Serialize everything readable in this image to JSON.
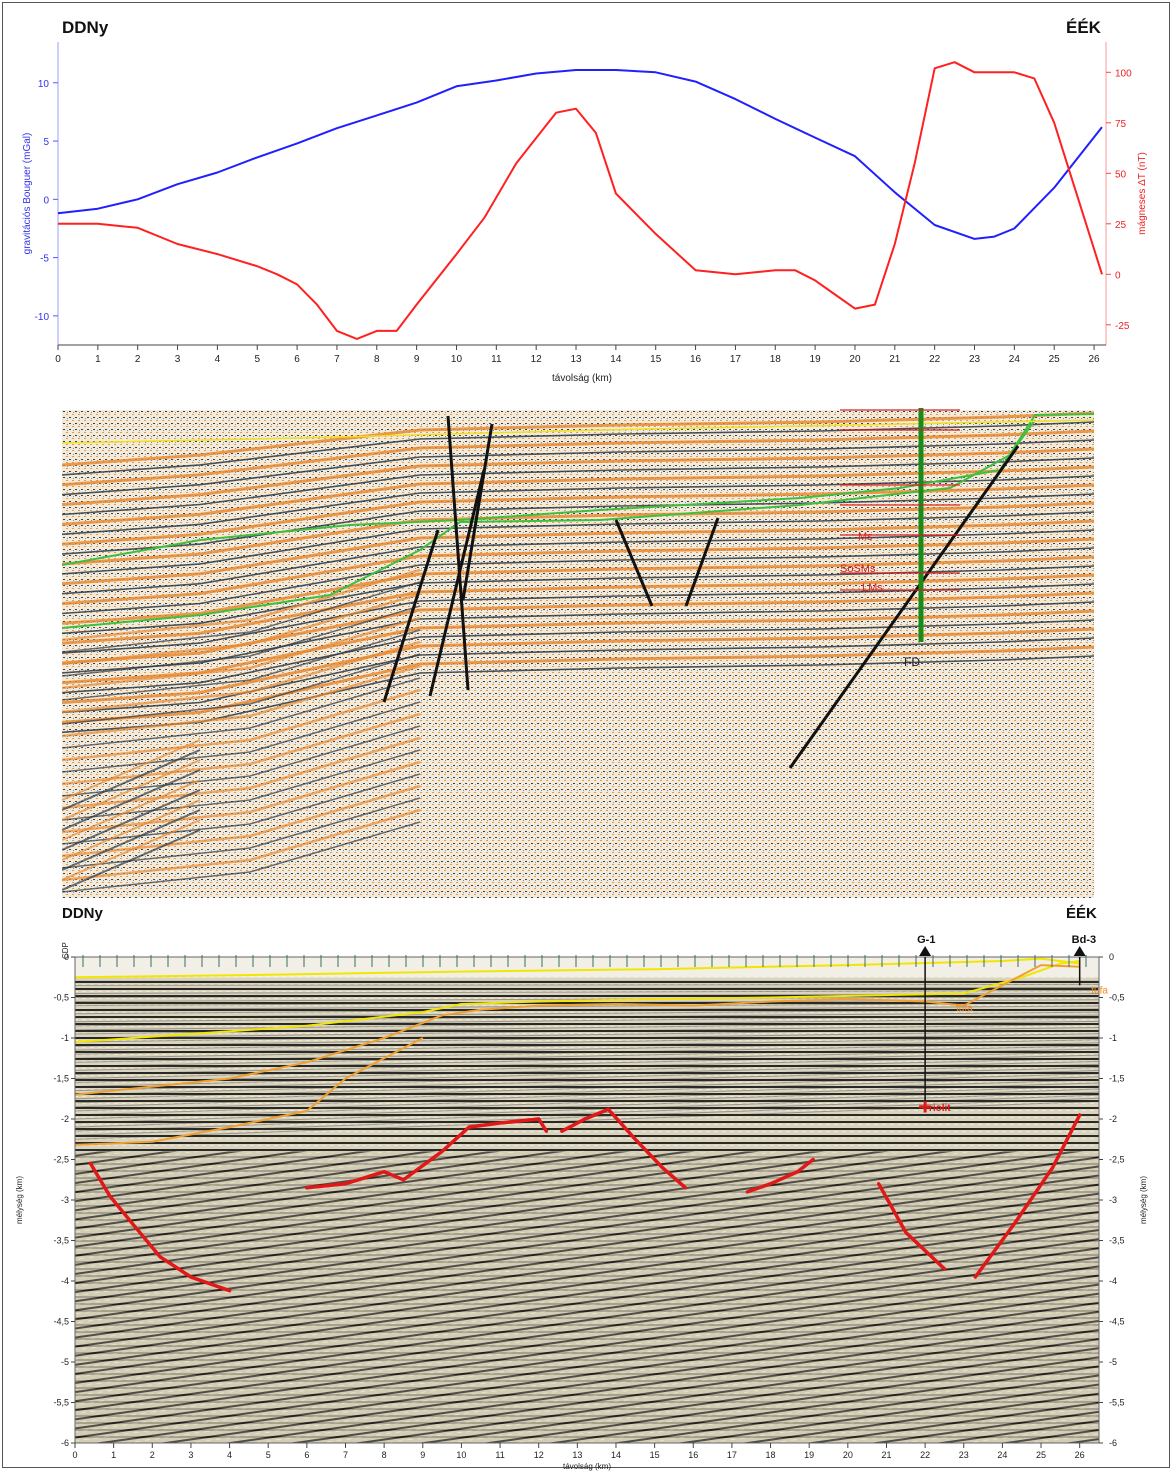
{
  "labels": {
    "left_dir": "DDNy",
    "right_dir": "ÉÉK",
    "left_dir_bottom": "DDNy",
    "right_dir_bottom": "ÉÉK"
  },
  "colors": {
    "gravity": "#2020ff",
    "magnetic": "#ff2020",
    "fault": "#111111",
    "horizon_green": "#3fbf3f",
    "horizon_yellow": "#f2e600",
    "horizon_orange": "#f0a030",
    "basement_red": "#e01818",
    "well_green": "#1a8a1a"
  },
  "chart_data": [
    {
      "type": "line",
      "xlabel": "távolság (km)",
      "ylabel": "gravitációs Bouguer (mGal)",
      "y2label": "mágneses ΔT (nT)",
      "xlim": [
        0,
        26.3
      ],
      "ylim": [
        -12.5,
        13.5
      ],
      "y2lim": [
        -35,
        115
      ],
      "xticks": [
        "0",
        "1",
        "2",
        "3",
        "4",
        "5",
        "6",
        "7",
        "8",
        "9",
        "10",
        "11",
        "12",
        "13",
        "14",
        "15",
        "16",
        "17",
        "18",
        "19",
        "20",
        "21",
        "22",
        "23",
        "24",
        "25",
        "26"
      ],
      "yticks": [
        "-10",
        "-5",
        "0",
        "5",
        "10"
      ],
      "y2ticks": [
        "-25",
        "0",
        "25",
        "50",
        "75",
        "100"
      ],
      "series": [
        {
          "axis": "left",
          "color": "#2020ff",
          "x": [
            0,
            1,
            2,
            3,
            4,
            5,
            6,
            7,
            8,
            9,
            10,
            11,
            12,
            13,
            14,
            15,
            16,
            17,
            18,
            19,
            20,
            21,
            22,
            23,
            23.5,
            24,
            25,
            26.2
          ],
          "y": [
            -1.2,
            -0.8,
            0,
            1.3,
            2.3,
            3.6,
            4.8,
            6.1,
            7.2,
            8.3,
            9.7,
            10.2,
            10.8,
            11.1,
            11.1,
            10.9,
            10.1,
            8.6,
            6.9,
            5.3,
            3.7,
            0.6,
            -2.2,
            -3.4,
            -3.2,
            -2.5,
            1.0,
            6.2
          ]
        },
        {
          "axis": "right",
          "color": "#ff2020",
          "x": [
            0,
            1,
            2,
            3,
            4,
            5,
            5.5,
            6,
            6.5,
            7,
            7.5,
            8,
            8.5,
            9,
            10,
            10.7,
            11.5,
            12.5,
            13,
            13.5,
            14,
            15,
            16,
            17,
            18,
            18.5,
            19,
            19.5,
            20,
            20.5,
            21,
            21.5,
            22,
            22.5,
            23,
            24,
            24.5,
            25,
            26.2
          ],
          "y": [
            25,
            25,
            23,
            15,
            10,
            4,
            0,
            -5,
            -15,
            -28,
            -32,
            -28,
            -28,
            -15,
            10,
            28,
            55,
            80,
            82,
            70,
            40,
            20,
            2,
            0,
            2,
            2,
            -3,
            -10,
            -17,
            -15,
            15,
            55,
            102,
            105,
            100,
            100,
            97,
            75,
            0
          ]
        }
      ]
    },
    {
      "type": "heatmap",
      "annotations": [
        "Ms",
        "SoSMs",
        "LMs",
        "FD"
      ],
      "fault_lines_km": [
        [
          10.5,
          0.01,
          10.9,
          0.56
        ],
        [
          11.0,
          0.01,
          10.5,
          0.54
        ],
        [
          9.5,
          0.25,
          8.0,
          0.59
        ],
        [
          10.8,
          0.22,
          9.2,
          0.57
        ],
        [
          14.0,
          0.22,
          14.8,
          0.39
        ],
        [
          16.2,
          0.22,
          15.8,
          0.39
        ],
        [
          24.6,
          0.07,
          18.2,
          0.74
        ]
      ]
    },
    {
      "type": "heatmap",
      "xlabel": "távolság (km)",
      "ylabel": "mélység (km)",
      "xlim": [
        0,
        26.5
      ],
      "ylim": [
        -6,
        0
      ],
      "xticks": [
        "0",
        "1",
        "2",
        "3",
        "4",
        "5",
        "6",
        "7",
        "8",
        "9",
        "10",
        "11",
        "12",
        "13",
        "14",
        "15",
        "16",
        "17",
        "18",
        "19",
        "20",
        "21",
        "22",
        "23",
        "24",
        "25",
        "26"
      ],
      "yticks": [
        "0",
        "-0,5",
        "-1",
        "-1,5",
        "-2",
        "-2,5",
        "-3",
        "-3,5",
        "-4",
        "-4,5",
        "-5",
        "-5,5",
        "-6"
      ],
      "cdp_label": "CDP",
      "wells": [
        {
          "name": "G-1",
          "km": 22.0
        },
        {
          "name": "Bd-3",
          "km": 26.0
        }
      ],
      "annotations": [
        {
          "text": "tufa",
          "km": 22.8,
          "depth": -0.62
        },
        {
          "text": "tufa",
          "km": 26.3,
          "depth": -0.4
        },
        {
          "text": "riolit",
          "km": 22.1,
          "depth": -1.85
        }
      ],
      "horizons": [
        {
          "color": "#f2e600",
          "x": [
            0,
            5,
            10,
            15,
            20,
            24,
            25,
            26
          ],
          "y": [
            -0.25,
            -0.22,
            -0.18,
            -0.15,
            -0.1,
            -0.05,
            -0.02,
            -0.08
          ]
        },
        {
          "color": "#f2e600",
          "x": [
            0,
            3,
            6,
            9,
            10,
            12,
            15,
            18,
            21,
            23,
            24.5,
            25.5,
            26
          ],
          "y": [
            -1.05,
            -0.95,
            -0.85,
            -0.68,
            -0.58,
            -0.55,
            -0.52,
            -0.5,
            -0.47,
            -0.45,
            -0.25,
            -0.08,
            -0.05
          ]
        },
        {
          "color": "#f0a030",
          "x": [
            0,
            2,
            4,
            6,
            8,
            9.5,
            10.5,
            12,
            14,
            16,
            18,
            20,
            22,
            23,
            24,
            25,
            26
          ],
          "y": [
            -1.7,
            -1.6,
            -1.5,
            -1.3,
            -1.0,
            -0.72,
            -0.65,
            -0.6,
            -0.58,
            -0.6,
            -0.55,
            -0.52,
            -0.55,
            -0.6,
            -0.35,
            -0.1,
            -0.12
          ]
        },
        {
          "color": "#f0a030",
          "x": [
            0,
            2,
            4,
            5,
            6,
            7,
            8,
            9
          ],
          "y": [
            -2.32,
            -2.28,
            -2.1,
            -2.0,
            -1.9,
            -1.5,
            -1.25,
            -1.0
          ]
        }
      ],
      "basement": [
        [
          [
            0.4,
            0.9,
            1.5,
            2.2,
            3.0,
            4.0
          ],
          [
            -2.55,
            -2.95,
            -3.3,
            -3.7,
            -3.95,
            -4.12
          ]
        ],
        [
          [
            6.0,
            7.0,
            8.0,
            8.5,
            9.5,
            10.2,
            11.0,
            12.0,
            12.2
          ],
          [
            -2.85,
            -2.8,
            -2.65,
            -2.75,
            -2.4,
            -2.1,
            -2.05,
            -2.0,
            -2.15
          ]
        ],
        [
          [
            12.6,
            13.2,
            13.8,
            14.5,
            15.2,
            15.8
          ],
          [
            -2.15,
            -2.0,
            -1.88,
            -2.25,
            -2.6,
            -2.85
          ]
        ],
        [
          [
            17.4,
            18.0,
            18.7,
            19.1
          ],
          [
            -2.9,
            -2.8,
            -2.65,
            -2.5
          ]
        ],
        [
          [
            20.8,
            21.5,
            22.5
          ],
          [
            -2.8,
            -3.4,
            -3.85
          ]
        ],
        [
          [
            23.3,
            24.3,
            25.3,
            26.0
          ],
          [
            -3.95,
            -3.3,
            -2.6,
            -1.95
          ]
        ]
      ]
    }
  ]
}
